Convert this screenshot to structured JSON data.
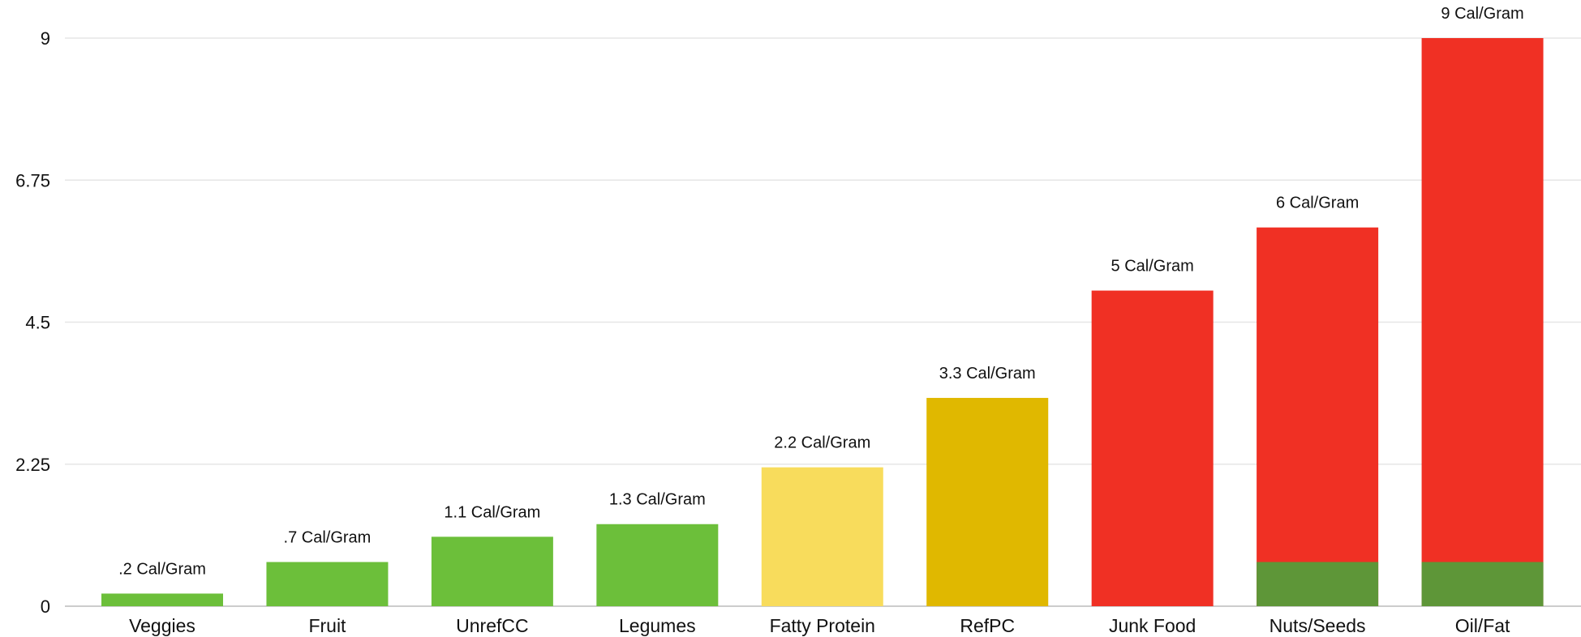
{
  "chart_data": {
    "type": "bar",
    "title": "",
    "xlabel": "",
    "ylabel": "",
    "ylim": [
      0,
      9
    ],
    "yticks": [
      "0",
      "2.25",
      "4.5",
      "6.75",
      "9"
    ],
    "grid": true,
    "categories": [
      "Veggies",
      "Fruit",
      "UnrefCC",
      "Legumes",
      "Fatty Protein",
      "RefPC",
      "Junk Food",
      "Nuts/Seeds",
      "Oil/Fat"
    ],
    "values": [
      0.2,
      0.7,
      1.1,
      1.3,
      2.2,
      3.3,
      5,
      6,
      9
    ],
    "data_labels": [
      ".2 Cal/Gram",
      ".7 Cal/Gram",
      "1.1 Cal/Gram",
      "1.3 Cal/Gram",
      "2.2 Cal/Gram",
      "3.3 Cal/Gram",
      "5 Cal/Gram",
      "6 Cal/Gram",
      "9 Cal/Gram"
    ],
    "bar_colors": [
      "#6cbf3a",
      "#6cbf3a",
      "#6cbf3a",
      "#6cbf3a",
      "#f8dc5c",
      "#e0b800",
      "#f03024",
      "#f03024",
      "#f03024"
    ],
    "base_segment": {
      "value": 0.7,
      "color": "#5e9638",
      "categories": [
        "Nuts/Seeds",
        "Oil/Fat"
      ]
    },
    "colors": {
      "grid": "#e6e6e6",
      "axis": "#cccccc",
      "text": "#111111"
    }
  }
}
